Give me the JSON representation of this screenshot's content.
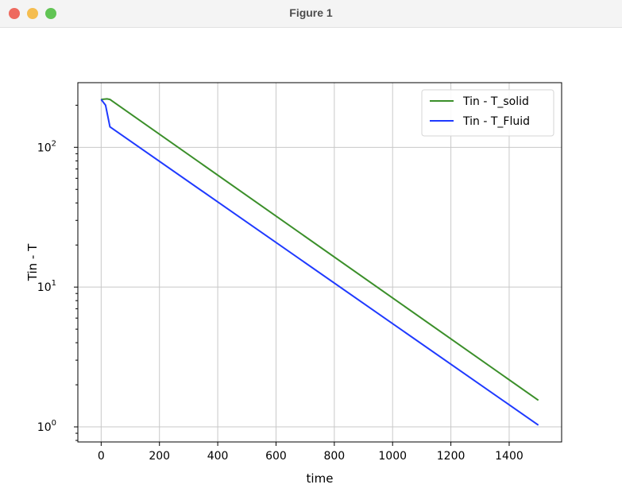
{
  "window": {
    "title": "Figure 1",
    "buttons": [
      "close-button",
      "minimize-button",
      "zoom-button"
    ]
  },
  "chart_data": {
    "type": "line",
    "xlabel": "time",
    "ylabel": "Tin - T",
    "xlim": [
      -80,
      1580
    ],
    "ylim": [
      0.78,
      290
    ],
    "yscale": "log",
    "grid": true,
    "legend_position": "top-right",
    "x_ticks": [
      0,
      200,
      400,
      600,
      800,
      1000,
      1200,
      1400
    ],
    "y_ticks": [
      {
        "value": 1,
        "base": "10",
        "exp": "0"
      },
      {
        "value": 10,
        "base": "10",
        "exp": "1"
      },
      {
        "value": 100,
        "base": "10",
        "exp": "2"
      }
    ],
    "series": [
      {
        "name": "Tin - T_solid",
        "color": "#3b8f2a",
        "x": [
          0,
          20,
          30,
          1500
        ],
        "y": [
          220,
          222,
          220,
          1.55
        ]
      },
      {
        "name": "Tin - T_Fluid",
        "color": "#1f3aff",
        "x": [
          0,
          15,
          30,
          1500
        ],
        "y": [
          220,
          200,
          140,
          1.03
        ]
      }
    ]
  }
}
